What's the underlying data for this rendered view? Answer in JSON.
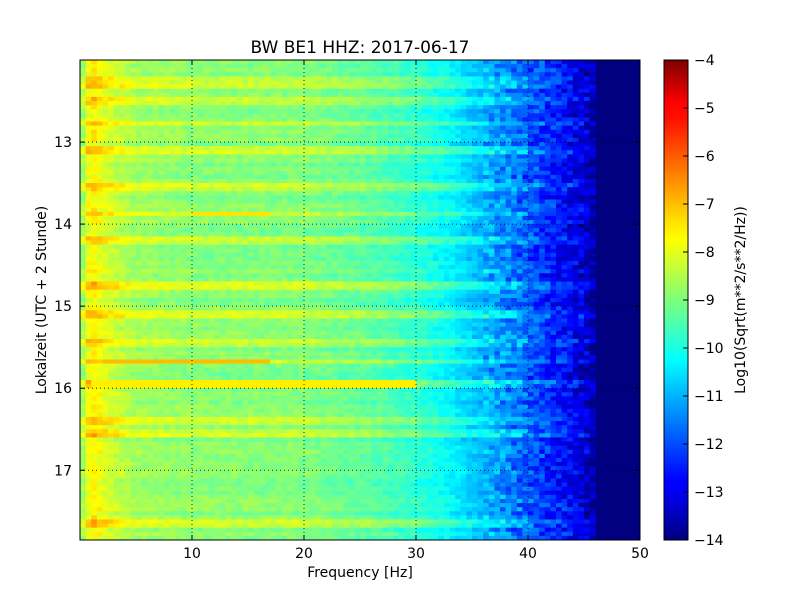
{
  "chart_data": {
    "type": "heatmap",
    "title": "BW BE1 HHZ: 2017-06-17",
    "xlabel": "Frequency [Hz]",
    "ylabel": "Lokalzeit (UTC + 2 Stunde)",
    "xlim": [
      0,
      50
    ],
    "ylim": [
      17.85,
      12.0
    ],
    "y_inverted": true,
    "x_ticks": [
      10,
      20,
      30,
      40,
      50
    ],
    "y_ticks": [
      13,
      14,
      15,
      16,
      17
    ],
    "grid": true,
    "colormap": "jet",
    "colorbar": {
      "label": "Log10(Sqrt(m**2/s**2/Hz))",
      "range": [
        -14,
        -4
      ],
      "ticks": [
        -4,
        -5,
        -6,
        -7,
        -8,
        -9,
        -10,
        -11,
        -12,
        -13,
        -14
      ]
    },
    "spectrum_profile": {
      "frequency_hz": [
        0,
        0.5,
        1,
        2,
        3,
        5,
        10,
        20,
        25,
        30,
        33,
        35,
        38,
        40,
        42,
        44,
        45.5,
        46,
        50
      ],
      "log10_amplitude": [
        -9.2,
        -8.2,
        -7.6,
        -8.0,
        -8.3,
        -8.7,
        -8.9,
        -9.0,
        -9.3,
        -9.8,
        -10.3,
        -10.8,
        -11.4,
        -11.9,
        -12.4,
        -12.9,
        -13.4,
        -14.0,
        -14.0
      ]
    },
    "strong_rows_hours": [
      12.22,
      12.3,
      12.5,
      12.78,
      13.1,
      13.55,
      13.88,
      14.2,
      14.75,
      15.1,
      15.45,
      15.68,
      15.95,
      16.4,
      16.55,
      17.65
    ],
    "notable_features": [
      {
        "hour": 15.68,
        "freq_range_hz": [
          2,
          17
        ],
        "log10_amplitude": -7.1
      },
      {
        "hour": 15.95,
        "freq_range_hz": [
          1,
          30
        ],
        "log10_amplitude": -7.6
      },
      {
        "hour": 13.88,
        "freq_range_hz": [
          10,
          17
        ],
        "log10_amplitude": -7.5
      }
    ]
  }
}
